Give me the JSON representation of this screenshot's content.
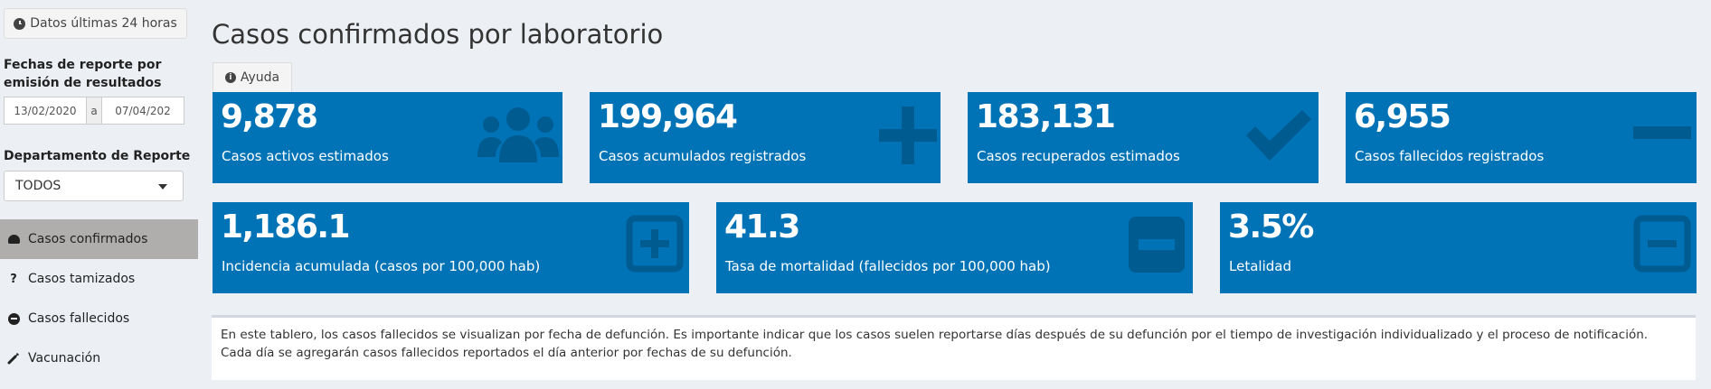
{
  "sidebar": {
    "recent_button": "Datos últimas 24 horas",
    "dates_label": "Fechas de reporte por emisión de resultados",
    "date_from": "13/02/2020",
    "date_sep": "a",
    "date_to": "07/04/202",
    "dept_label": "Departamento de Reporte",
    "dept_value": "TODOS",
    "menu": [
      {
        "label": "Casos confirmados",
        "icon": "dashboard-icon",
        "active": true
      },
      {
        "label": "Casos tamizados",
        "icon": "question-icon"
      },
      {
        "label": "Casos fallecidos",
        "icon": "minus-circle-icon"
      },
      {
        "label": "Vacunación",
        "icon": "syringe-icon"
      }
    ]
  },
  "main": {
    "title": "Casos confirmados por laboratorio",
    "help_tab": "Ayuda",
    "boxes_row1": [
      {
        "value": "9,878",
        "label": "Casos activos estimados",
        "icon": "users-icon"
      },
      {
        "value": "199,964",
        "label": "Casos acumulados registrados",
        "icon": "plus-icon"
      },
      {
        "value": "183,131",
        "label": "Casos recuperados estimados",
        "icon": "check-icon"
      },
      {
        "value": "6,955",
        "label": "Casos fallecidos registrados",
        "icon": "minus-icon"
      }
    ],
    "boxes_row2": [
      {
        "value": "1,186.1",
        "label": "Incidencia acumulada (casos por 100,000 hab)",
        "icon": "plus-square-icon"
      },
      {
        "value": "41.3",
        "label": "Tasa de mortalidad (fallecidos por 100,000 hab)",
        "icon": "minus-square-filled-icon"
      },
      {
        "value": "3.5%",
        "label": "Letalidad",
        "icon": "minus-square-outline-icon"
      }
    ],
    "note_line1": "En este tablero, los casos fallecidos se visualizan por fecha de defunción. Es importante indicar que los casos suelen reportarse días después de su defunción por el tiempo de investigación individualizado y el proceso de notificación.",
    "note_line2": "Cada día se agregarán casos fallecidos reportados el día anterior por fechas de su defunción."
  },
  "colors": {
    "box_blue": "#0073b7",
    "icon_shade": "#005b91",
    "sidebar_active": "#b0adad",
    "background": "#ecf0f5"
  }
}
